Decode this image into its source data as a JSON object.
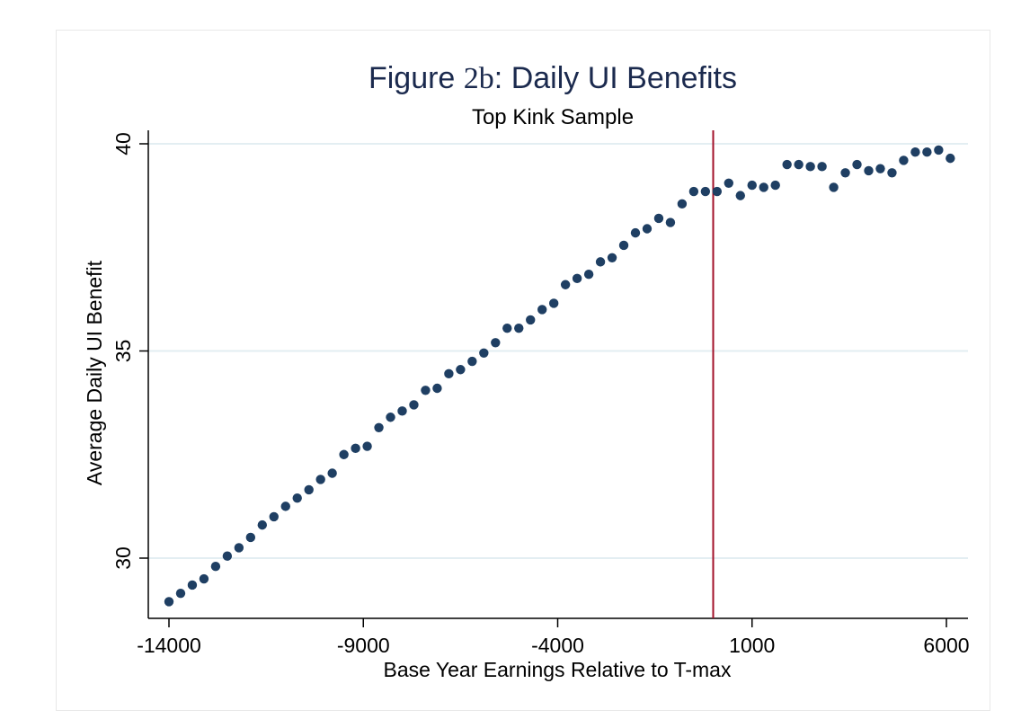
{
  "chart_data": {
    "type": "scatter",
    "title_prefix": "Figure ",
    "title_fig": "2b",
    "title_suffix": ": Daily UI Benefits",
    "subtitle": "Top Kink Sample",
    "xlabel": "Base Year Earnings Relative to T-max",
    "ylabel": "Average Daily UI Benefit",
    "xlim": [
      -14500,
      6500
    ],
    "ylim": [
      28.5,
      40.2
    ],
    "xticks": [
      -14000,
      -9000,
      -4000,
      1000,
      6000
    ],
    "yticks": [
      30,
      35,
      40
    ],
    "grid": true,
    "kink_line_x": 0,
    "colors": {
      "points": "#1f3f63",
      "kink_line": "#a3122a",
      "grid": "#e3eef2",
      "axis": "#000000"
    },
    "series": [
      {
        "x": [
          -14000,
          -13700,
          -13400,
          -13100,
          -12800,
          -12500,
          -12200,
          -11900,
          -11600,
          -11300,
          -11000,
          -10700,
          -10400,
          -10100,
          -9800,
          -9500,
          -9200,
          -8900,
          -8600,
          -8300,
          -8000,
          -7700,
          -7400,
          -7100,
          -6800,
          -6500,
          -6200,
          -5900,
          -5600,
          -5300,
          -5000,
          -4700,
          -4400,
          -4100,
          -3800,
          -3500,
          -3200,
          -2900,
          -2600,
          -2300,
          -2000,
          -1700,
          -1400,
          -1100,
          -800,
          -500,
          -200,
          100,
          400,
          700,
          1000,
          1300,
          1600,
          1900,
          2200,
          2500,
          2800,
          3100,
          3400,
          3700,
          4000,
          4300,
          4600,
          4900,
          5200,
          5500,
          5800,
          6100
        ],
        "y": [
          28.95,
          29.15,
          29.35,
          29.5,
          29.8,
          30.05,
          30.25,
          30.5,
          30.8,
          31.0,
          31.25,
          31.45,
          31.65,
          31.9,
          32.05,
          32.5,
          32.65,
          32.7,
          33.15,
          33.4,
          33.55,
          33.7,
          34.05,
          34.1,
          34.45,
          34.55,
          34.75,
          34.95,
          35.2,
          35.55,
          35.55,
          35.75,
          36.0,
          36.15,
          36.6,
          36.75,
          36.85,
          37.15,
          37.25,
          37.55,
          37.85,
          37.95,
          38.2,
          38.1,
          38.55,
          38.85,
          38.85,
          38.85,
          39.05,
          38.75,
          39.0,
          38.95,
          39.0,
          39.5,
          39.5,
          39.45,
          39.45,
          38.95,
          39.3,
          39.5,
          39.35,
          39.4,
          39.3,
          39.6,
          39.8,
          39.8,
          39.85,
          39.65
        ]
      }
    ]
  }
}
